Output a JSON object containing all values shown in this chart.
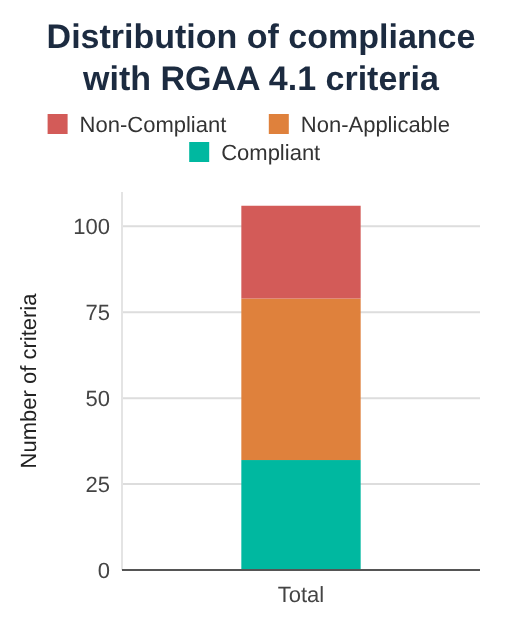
{
  "chart_data": {
    "type": "bar",
    "title": "Distribution of compliance with RGAA 4.1 criteria",
    "ylabel": "Number of criteria",
    "categories": [
      "Total"
    ],
    "stacked": true,
    "series": [
      {
        "name": "Compliant",
        "color": "#00b8a0",
        "values": [
          32
        ]
      },
      {
        "name": "Non-Applicable",
        "color": "#df813c",
        "values": [
          47
        ]
      },
      {
        "name": "Non-Compliant",
        "color": "#d35b58",
        "values": [
          27
        ]
      }
    ],
    "ylim": [
      0,
      110
    ],
    "yticks": [
      0,
      25,
      50,
      75,
      100
    ],
    "grid": "y",
    "legend": "top"
  }
}
